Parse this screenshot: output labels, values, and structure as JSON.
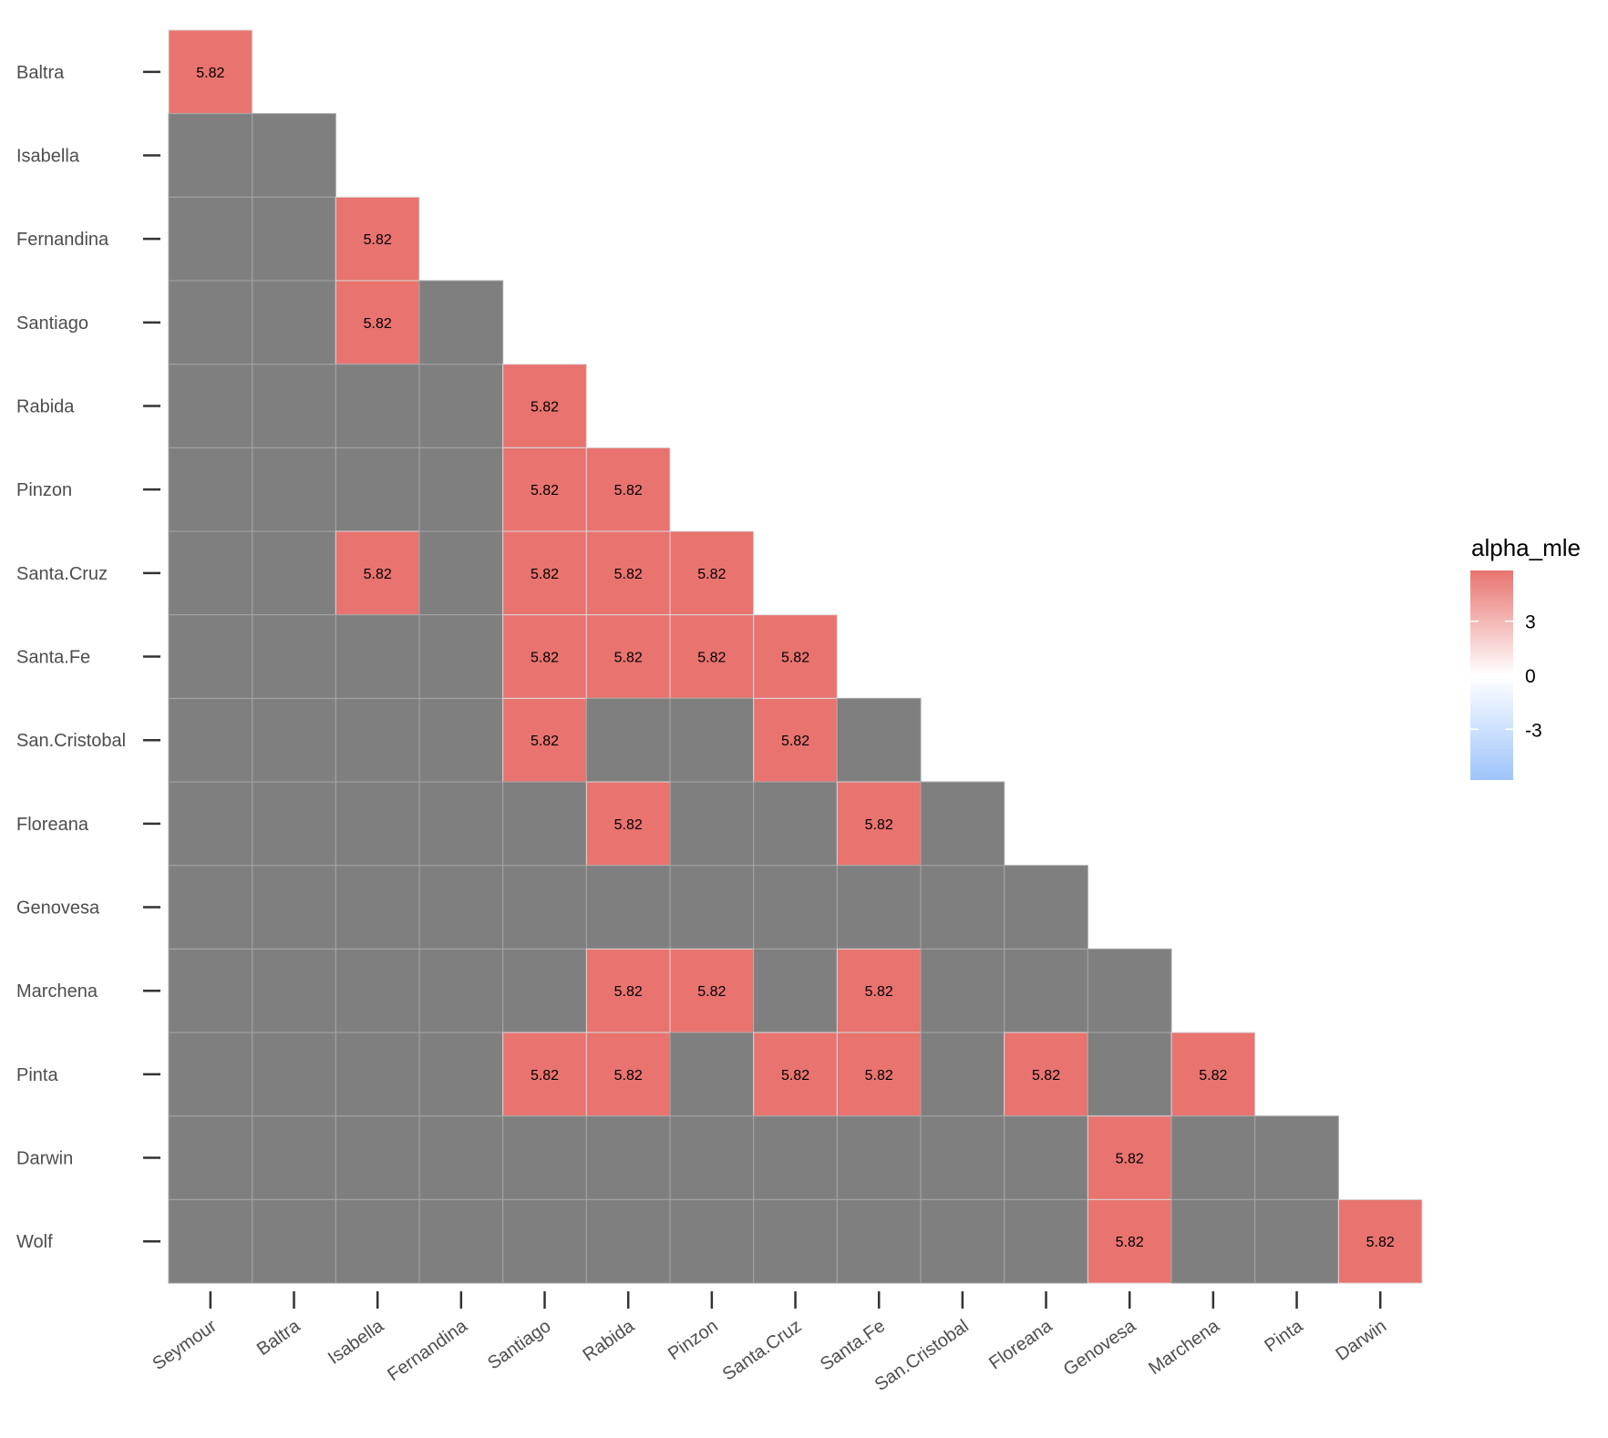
{
  "chart_data": {
    "type": "heatmap",
    "title": "",
    "xlabel": "",
    "ylabel": "",
    "x_categories": [
      "Seymour",
      "Baltra",
      "Isabella",
      "Fernandina",
      "Santiago",
      "Rabida",
      "Pinzon",
      "Santa.Cruz",
      "Santa.Fe",
      "San.Cristobal",
      "Floreana",
      "Genovesa",
      "Marchena",
      "Pinta",
      "Darwin"
    ],
    "y_categories": [
      "Baltra",
      "Isabella",
      "Fernandina",
      "Santiago",
      "Rabida",
      "Pinzon",
      "Santa.Cruz",
      "Santa.Fe",
      "San.Cristobal",
      "Floreana",
      "Genovesa",
      "Marchena",
      "Pinta",
      "Darwin",
      "Wolf"
    ],
    "layout": "lower-triangle",
    "values": [
      [
        5.82
      ],
      [
        null,
        null
      ],
      [
        null,
        null,
        5.82
      ],
      [
        null,
        null,
        5.82,
        null
      ],
      [
        null,
        null,
        null,
        null,
        5.82
      ],
      [
        null,
        null,
        null,
        null,
        5.82,
        5.82
      ],
      [
        null,
        null,
        5.82,
        null,
        5.82,
        5.82,
        5.82
      ],
      [
        null,
        null,
        null,
        null,
        5.82,
        5.82,
        5.82,
        5.82
      ],
      [
        null,
        null,
        null,
        null,
        5.82,
        null,
        null,
        5.82,
        null
      ],
      [
        null,
        null,
        null,
        null,
        null,
        5.82,
        null,
        null,
        5.82,
        null
      ],
      [
        null,
        null,
        null,
        null,
        null,
        null,
        null,
        null,
        null,
        null,
        null
      ],
      [
        null,
        null,
        null,
        null,
        null,
        5.82,
        5.82,
        null,
        5.82,
        null,
        null,
        null
      ],
      [
        null,
        null,
        null,
        null,
        5.82,
        5.82,
        null,
        5.82,
        5.82,
        null,
        5.82,
        null,
        5.82
      ],
      [
        null,
        null,
        null,
        null,
        null,
        null,
        null,
        null,
        null,
        null,
        null,
        5.82,
        null,
        null
      ],
      [
        null,
        null,
        null,
        null,
        null,
        null,
        null,
        null,
        null,
        null,
        null,
        5.82,
        null,
        null,
        5.82
      ]
    ],
    "cell_label_text": "5.82",
    "na_color": "#7f7f7f",
    "legend": {
      "title": "alpha_mle",
      "placement": "right",
      "limits": [
        -5.82,
        5.82
      ],
      "ticks": [
        3,
        0,
        -3
      ],
      "tick_labels": [
        "3",
        "0",
        "-3"
      ],
      "low_color": "#9ec4fb",
      "mid_color": "#ffffff",
      "high_color": "#e8736f"
    },
    "grid": false
  }
}
